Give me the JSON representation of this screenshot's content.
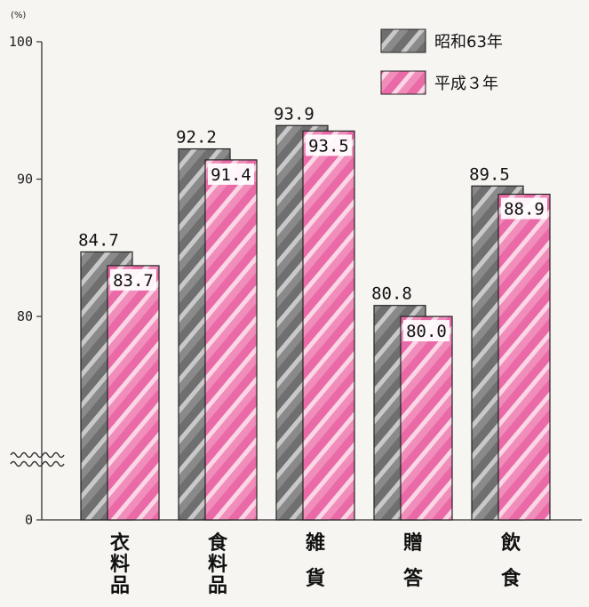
{
  "chart_data": {
    "type": "bar",
    "y_unit": "(%)",
    "categories": [
      "衣料品",
      "食料品",
      "雑貨",
      "贈答",
      "飲食"
    ],
    "category_lines": [
      [
        "衣",
        "料",
        "品"
      ],
      [
        "食",
        "料",
        "品"
      ],
      [
        "雑",
        "貨"
      ],
      [
        "贈",
        "答"
      ],
      [
        "飲",
        "食"
      ]
    ],
    "series": [
      {
        "name": "昭和63年",
        "values": [
          84.7,
          92.2,
          93.9,
          80.8,
          89.5
        ],
        "labels": [
          "84.7",
          "92.2",
          "93.9",
          "80.8",
          "89.5"
        ],
        "color": "#9a9a9a"
      },
      {
        "name": "平成３年",
        "values": [
          83.7,
          91.4,
          93.5,
          80.0,
          88.9
        ],
        "labels": [
          "83.7",
          "91.4",
          "93.5",
          "80.0",
          "88.9"
        ],
        "color": "#ee7fb2"
      }
    ],
    "y_ticks": [
      "100",
      "90",
      "80",
      "0"
    ],
    "ylim": [
      0,
      100
    ],
    "axis_break": true,
    "legend_position": "top-right",
    "grid": false
  }
}
